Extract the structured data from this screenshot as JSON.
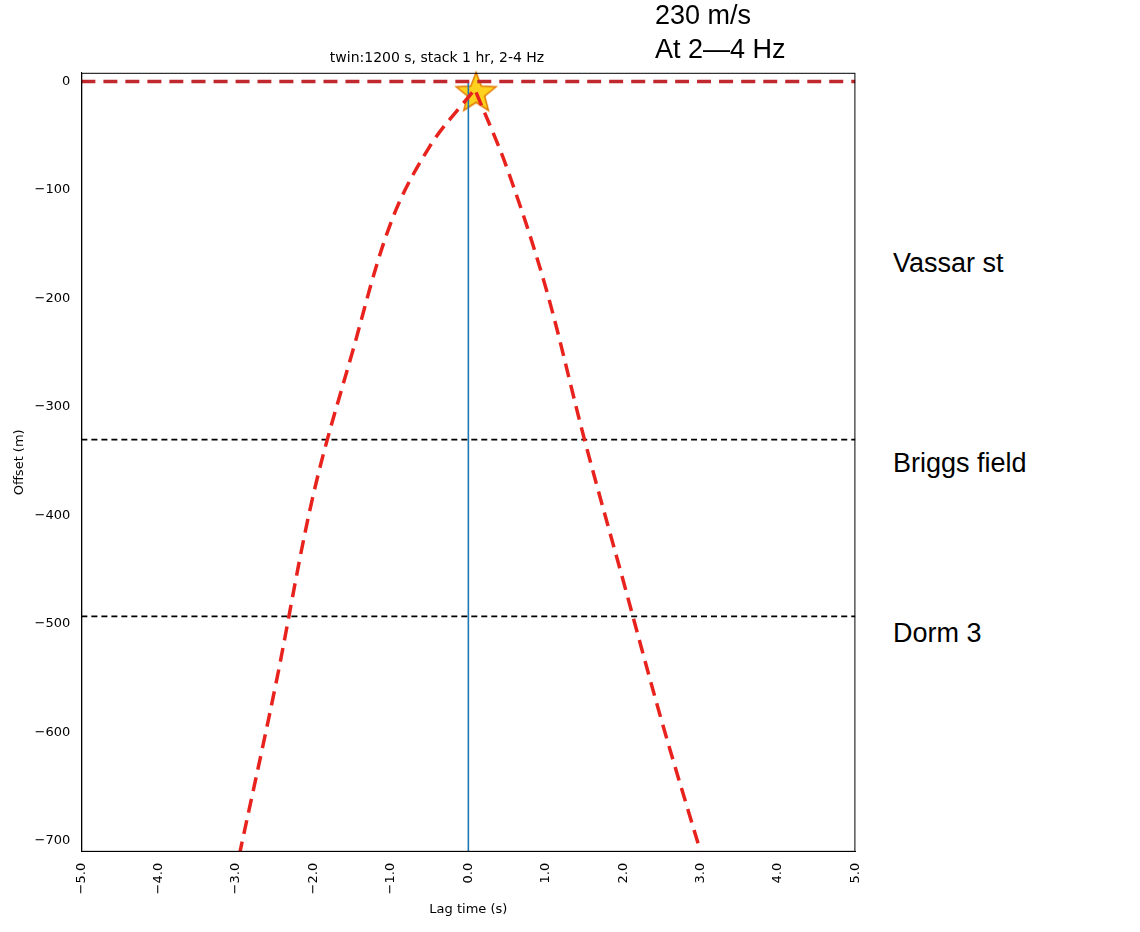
{
  "chart_data": {
    "type": "line",
    "title": "twin:1200 s, stack 1 hr, 2-4 Hz",
    "x_label": "Lag time (s)",
    "y_label": "Offset (m)",
    "xlim": [
      -5,
      5
    ],
    "ylim": [
      -710,
      8
    ],
    "xticks": [
      {
        "value": -5,
        "label": "−5.0"
      },
      {
        "value": -4,
        "label": "−4.0"
      },
      {
        "value": -3,
        "label": "−3.0"
      },
      {
        "value": -2,
        "label": "−2.0"
      },
      {
        "value": -1,
        "label": "−1.0"
      },
      {
        "value": 0,
        "label": "0.0"
      },
      {
        "value": 1,
        "label": "1.0"
      },
      {
        "value": 2,
        "label": "2.0"
      },
      {
        "value": 3,
        "label": "3.0"
      },
      {
        "value": 4,
        "label": "4.0"
      },
      {
        "value": 5,
        "label": "5.0"
      }
    ],
    "yticks": [
      0,
      {
        "value": -100,
        "label": "−100"
      },
      {
        "value": -200,
        "label": "−200"
      },
      {
        "value": -300,
        "label": "−300"
      },
      {
        "value": -400,
        "label": "−400"
      },
      {
        "value": -500,
        "label": "−500"
      },
      {
        "value": -600,
        "label": "−600"
      },
      {
        "value": -700,
        "label": "−700"
      }
    ],
    "grid": false,
    "series": [
      {
        "x": [
          0.05,
          -0.5,
          -1.0,
          -1.5,
          -2.0,
          -2.5,
          -2.95
        ],
        "values": [
          -10,
          -60,
          -130,
          -250,
          -380,
          -560,
          -710
        ],
        "color": "#e8221c",
        "line_style": "dashed",
        "marker": "none"
      },
      {
        "x": [
          0.1,
          0.5,
          1.0,
          1.5,
          2.0,
          2.5,
          3.0
        ],
        "values": [
          -10,
          -80,
          -190,
          -330,
          -460,
          -590,
          -710
        ],
        "color": "#e8221c",
        "line_style": "dashed",
        "marker": "none"
      },
      {
        "x": [
          -5,
          5
        ],
        "values": [
          0,
          0
        ],
        "color": "#c0282d",
        "line_style": "dashed",
        "marker": "none"
      },
      {
        "x": [
          -5,
          5
        ],
        "values": [
          -330,
          -330
        ],
        "color": "#000000",
        "line_style": "dashed",
        "marker": "none"
      },
      {
        "x": [
          -5,
          5
        ],
        "values": [
          -493,
          -493
        ],
        "color": "#000000",
        "line_style": "dashed",
        "marker": "none"
      },
      {
        "x": [
          0,
          0
        ],
        "values": [
          0,
          -710
        ],
        "color": "#1f77b4",
        "line_style": "solid",
        "marker": "none"
      },
      {
        "x": [
          0.1
        ],
        "values": [
          -10
        ],
        "color": "#ffd21f",
        "line_style": "none",
        "marker": "star"
      }
    ],
    "annotations": [
      "230 m/s",
      "At 2—4 Hz",
      "Vassar st",
      "Briggs field",
      "Dorm 3"
    ]
  }
}
